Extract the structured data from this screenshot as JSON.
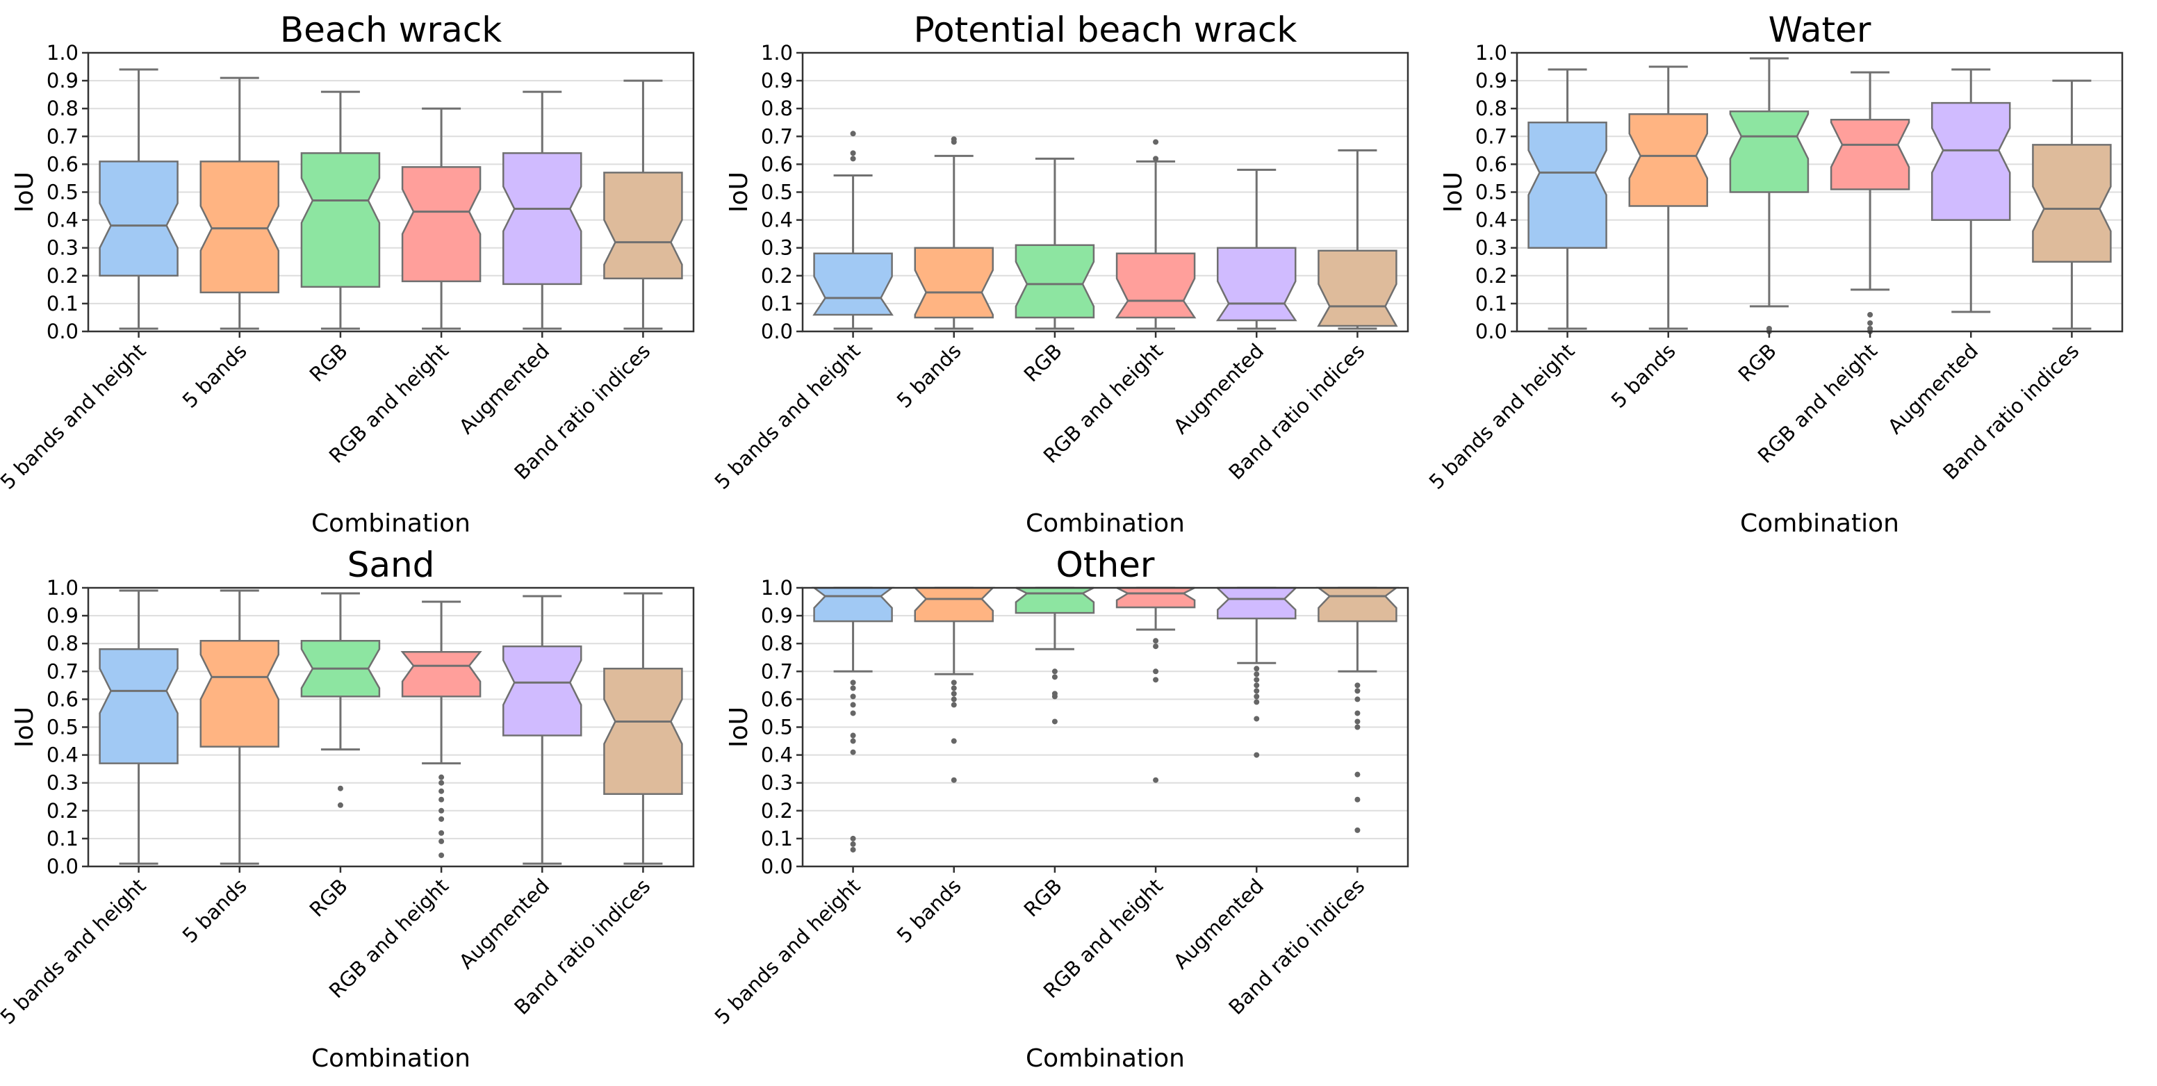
{
  "chart_data": [
    {
      "type": "boxplot",
      "title": "Beach wrack",
      "xlabel": "Combination",
      "ylabel": "IoU",
      "ylim": [
        0.0,
        1.0
      ],
      "yticks": [
        "0.0",
        "0.1",
        "0.2",
        "0.3",
        "0.4",
        "0.5",
        "0.6",
        "0.7",
        "0.8",
        "0.9",
        "1.0"
      ],
      "grid": "horizontal",
      "categories": [
        "5 bands and height",
        "5 bands",
        "RGB",
        "RGB and height",
        "Augmented",
        "Band ratio indices"
      ],
      "boxes": [
        {
          "q1": 0.2,
          "median": 0.38,
          "q3": 0.61,
          "whislo": 0.01,
          "whishi": 0.94,
          "fliers": []
        },
        {
          "q1": 0.14,
          "median": 0.37,
          "q3": 0.61,
          "whislo": 0.01,
          "whishi": 0.91,
          "fliers": []
        },
        {
          "q1": 0.16,
          "median": 0.47,
          "q3": 0.64,
          "whislo": 0.01,
          "whishi": 0.86,
          "fliers": []
        },
        {
          "q1": 0.18,
          "median": 0.43,
          "q3": 0.59,
          "whislo": 0.01,
          "whishi": 0.8,
          "fliers": []
        },
        {
          "q1": 0.17,
          "median": 0.44,
          "q3": 0.64,
          "whislo": 0.01,
          "whishi": 0.86,
          "fliers": []
        },
        {
          "q1": 0.19,
          "median": 0.32,
          "q3": 0.57,
          "whislo": 0.01,
          "whishi": 0.9,
          "fliers": []
        }
      ]
    },
    {
      "type": "boxplot",
      "title": "Potential beach wrack",
      "xlabel": "Combination",
      "ylabel": "IoU",
      "ylim": [
        0.0,
        1.0
      ],
      "yticks": [
        "0.0",
        "0.1",
        "0.2",
        "0.3",
        "0.4",
        "0.5",
        "0.6",
        "0.7",
        "0.8",
        "0.9",
        "1.0"
      ],
      "grid": "horizontal",
      "categories": [
        "5 bands and height",
        "5 bands",
        "RGB",
        "RGB and height",
        "Augmented",
        "Band ratio indices"
      ],
      "boxes": [
        {
          "q1": 0.06,
          "median": 0.12,
          "q3": 0.28,
          "whislo": 0.01,
          "whishi": 0.56,
          "fliers": [
            0.62,
            0.64,
            0.71
          ]
        },
        {
          "q1": 0.05,
          "median": 0.14,
          "q3": 0.3,
          "whislo": 0.01,
          "whishi": 0.63,
          "fliers": [
            0.68,
            0.69
          ]
        },
        {
          "q1": 0.05,
          "median": 0.17,
          "q3": 0.31,
          "whislo": 0.01,
          "whishi": 0.62,
          "fliers": []
        },
        {
          "q1": 0.05,
          "median": 0.11,
          "q3": 0.28,
          "whislo": 0.01,
          "whishi": 0.61,
          "fliers": [
            0.62,
            0.68
          ]
        },
        {
          "q1": 0.04,
          "median": 0.1,
          "q3": 0.3,
          "whislo": 0.01,
          "whishi": 0.58,
          "fliers": []
        },
        {
          "q1": 0.02,
          "median": 0.09,
          "q3": 0.29,
          "whislo": 0.01,
          "whishi": 0.65,
          "fliers": []
        }
      ]
    },
    {
      "type": "boxplot",
      "title": "Water",
      "xlabel": "Combination",
      "ylabel": "IoU",
      "ylim": [
        0.0,
        1.0
      ],
      "yticks": [
        "0.0",
        "0.1",
        "0.2",
        "0.3",
        "0.4",
        "0.5",
        "0.6",
        "0.7",
        "0.8",
        "0.9",
        "1.0"
      ],
      "grid": "horizontal",
      "categories": [
        "5 bands and height",
        "5 bands",
        "RGB",
        "RGB and height",
        "Augmented",
        "Band ratio indices"
      ],
      "boxes": [
        {
          "q1": 0.3,
          "median": 0.57,
          "q3": 0.75,
          "whislo": 0.01,
          "whishi": 0.94,
          "fliers": []
        },
        {
          "q1": 0.45,
          "median": 0.63,
          "q3": 0.78,
          "whislo": 0.01,
          "whishi": 0.95,
          "fliers": []
        },
        {
          "q1": 0.5,
          "median": 0.7,
          "q3": 0.79,
          "whislo": 0.09,
          "whishi": 0.98,
          "fliers": [
            0.0,
            0.01
          ]
        },
        {
          "q1": 0.51,
          "median": 0.67,
          "q3": 0.76,
          "whislo": 0.15,
          "whishi": 0.93,
          "fliers": [
            0.0,
            0.01,
            0.03,
            0.06
          ]
        },
        {
          "q1": 0.4,
          "median": 0.65,
          "q3": 0.82,
          "whislo": 0.07,
          "whishi": 0.94,
          "fliers": []
        },
        {
          "q1": 0.25,
          "median": 0.44,
          "q3": 0.67,
          "whislo": 0.01,
          "whishi": 0.9,
          "fliers": []
        }
      ]
    },
    {
      "type": "boxplot",
      "title": "Sand",
      "xlabel": "Combination",
      "ylabel": "IoU",
      "ylim": [
        0.0,
        1.0
      ],
      "yticks": [
        "0.0",
        "0.1",
        "0.2",
        "0.3",
        "0.4",
        "0.5",
        "0.6",
        "0.7",
        "0.8",
        "0.9",
        "1.0"
      ],
      "grid": "horizontal",
      "categories": [
        "5 bands and height",
        "5 bands",
        "RGB",
        "RGB and height",
        "Augmented",
        "Band ratio indices"
      ],
      "boxes": [
        {
          "q1": 0.37,
          "median": 0.63,
          "q3": 0.78,
          "whislo": 0.01,
          "whishi": 0.99,
          "fliers": []
        },
        {
          "q1": 0.43,
          "median": 0.68,
          "q3": 0.81,
          "whislo": 0.01,
          "whishi": 0.99,
          "fliers": []
        },
        {
          "q1": 0.61,
          "median": 0.71,
          "q3": 0.81,
          "whislo": 0.42,
          "whishi": 0.98,
          "fliers": [
            0.22,
            0.28
          ]
        },
        {
          "q1": 0.61,
          "median": 0.72,
          "q3": 0.77,
          "whislo": 0.37,
          "whishi": 0.95,
          "fliers": [
            0.04,
            0.09,
            0.12,
            0.17,
            0.2,
            0.24,
            0.27,
            0.3,
            0.32
          ]
        },
        {
          "q1": 0.47,
          "median": 0.66,
          "q3": 0.79,
          "whislo": 0.01,
          "whishi": 0.97,
          "fliers": []
        },
        {
          "q1": 0.26,
          "median": 0.52,
          "q3": 0.71,
          "whislo": 0.01,
          "whishi": 0.98,
          "fliers": []
        }
      ]
    },
    {
      "type": "boxplot",
      "title": "Other",
      "xlabel": "Combination",
      "ylabel": "IoU",
      "ylim": [
        0.0,
        1.0
      ],
      "yticks": [
        "0.0",
        "0.1",
        "0.2",
        "0.3",
        "0.4",
        "0.5",
        "0.6",
        "0.7",
        "0.8",
        "0.9",
        "1.0"
      ],
      "grid": "horizontal",
      "categories": [
        "5 bands and height",
        "5 bands",
        "RGB",
        "RGB and height",
        "Augmented",
        "Band ratio indices"
      ],
      "boxes": [
        {
          "q1": 0.88,
          "median": 0.97,
          "q3": 1.0,
          "whislo": 0.7,
          "whishi": 1.0,
          "fliers": [
            0.06,
            0.08,
            0.1,
            0.41,
            0.45,
            0.47,
            0.55,
            0.58,
            0.61,
            0.64,
            0.66
          ]
        },
        {
          "q1": 0.88,
          "median": 0.96,
          "q3": 1.0,
          "whislo": 0.69,
          "whishi": 1.0,
          "fliers": [
            0.31,
            0.45,
            0.58,
            0.6,
            0.62,
            0.64,
            0.66
          ]
        },
        {
          "q1": 0.91,
          "median": 0.98,
          "q3": 1.0,
          "whislo": 0.78,
          "whishi": 1.0,
          "fliers": [
            0.52,
            0.61,
            0.62,
            0.68,
            0.7
          ]
        },
        {
          "q1": 0.93,
          "median": 0.98,
          "q3": 1.0,
          "whislo": 0.85,
          "whishi": 1.0,
          "fliers": [
            0.31,
            0.67,
            0.7,
            0.79,
            0.81
          ]
        },
        {
          "q1": 0.89,
          "median": 0.96,
          "q3": 1.0,
          "whislo": 0.73,
          "whishi": 1.0,
          "fliers": [
            0.4,
            0.53,
            0.59,
            0.61,
            0.63,
            0.65,
            0.67,
            0.69,
            0.71
          ]
        },
        {
          "q1": 0.88,
          "median": 0.97,
          "q3": 1.0,
          "whislo": 0.7,
          "whishi": 1.0,
          "fliers": [
            0.13,
            0.24,
            0.33,
            0.5,
            0.52,
            0.55,
            0.6,
            0.63,
            0.65
          ]
        }
      ]
    }
  ],
  "palette": [
    "#a1c9f4",
    "#ffb482",
    "#8de5a1",
    "#ff9f9b",
    "#d0bbff",
    "#debb9b"
  ],
  "colors": {
    "whisker": "#707070",
    "frame": "#333333",
    "grid": "#dddddd",
    "flier": "#666666"
  }
}
